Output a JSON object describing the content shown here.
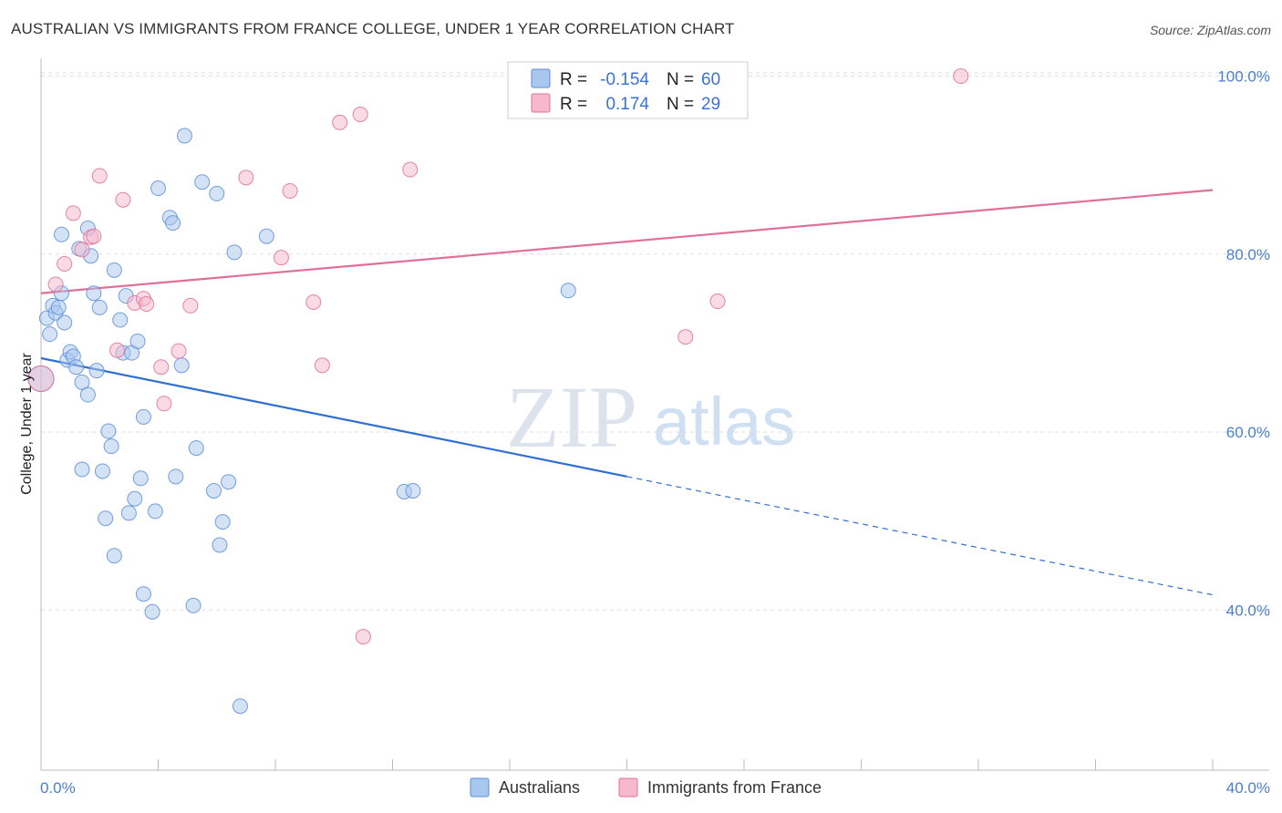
{
  "header": {
    "title": "AUSTRALIAN VS IMMIGRANTS FROM FRANCE COLLEGE, UNDER 1 YEAR CORRELATION CHART",
    "source": "Source: ZipAtlas.com"
  },
  "colors": {
    "blue": "#5b8fd9",
    "blue_fill": "#a9c6ee",
    "pink": "#e0709a",
    "pink_fill": "#f5b8cc",
    "blue_line": "#2f6fd1",
    "pink_line": "#e0709a",
    "grid": "#dddddd"
  },
  "watermark": {
    "zip": "ZIP",
    "atlas": "atlas"
  },
  "chart_data": {
    "type": "scatter",
    "title": "AUSTRALIAN VS IMMIGRANTS FROM FRANCE COLLEGE, UNDER 1 YEAR CORRELATION CHART",
    "xlabel": "",
    "ylabel": "College, Under 1 year",
    "xlim": [
      0,
      40
    ],
    "ylim": [
      22,
      102
    ],
    "x_tick_labels": [
      "0.0%",
      "40.0%"
    ],
    "y_ticks": [
      40,
      60,
      80,
      100
    ],
    "y_tick_labels": [
      "40.0%",
      "60.0%",
      "80.0%",
      "100.0%"
    ],
    "legend": [
      {
        "r_label": "R =",
        "r": "-0.154",
        "n_label": "N =",
        "n": "60"
      },
      {
        "r_label": "R =",
        "r": "0.174",
        "n_label": "N =",
        "n": "29"
      }
    ],
    "series": [
      {
        "name": "Australians",
        "color": "#5b8fd9",
        "trend": {
          "x0": 0,
          "y0": 68.3,
          "x1": 20,
          "y1": 55.0,
          "dash_to_x": 40,
          "dash_to_y": 41.7
        },
        "points": [
          [
            0.0,
            66.0
          ],
          [
            0.2,
            72.8
          ],
          [
            0.3,
            71.0
          ],
          [
            0.4,
            74.2
          ],
          [
            0.5,
            73.4
          ],
          [
            0.6,
            74.0
          ],
          [
            0.7,
            75.6
          ],
          [
            0.7,
            82.2
          ],
          [
            0.8,
            72.3
          ],
          [
            0.9,
            68.1
          ],
          [
            1.0,
            69.0
          ],
          [
            1.1,
            68.5
          ],
          [
            1.2,
            67.3
          ],
          [
            1.3,
            80.6
          ],
          [
            1.4,
            65.6
          ],
          [
            1.6,
            64.2
          ],
          [
            1.6,
            82.9
          ],
          [
            1.7,
            79.8
          ],
          [
            1.8,
            75.6
          ],
          [
            1.9,
            66.9
          ],
          [
            2.0,
            74.0
          ],
          [
            1.4,
            55.8
          ],
          [
            2.1,
            55.6
          ],
          [
            2.2,
            50.3
          ],
          [
            2.3,
            60.1
          ],
          [
            2.4,
            58.4
          ],
          [
            2.5,
            78.2
          ],
          [
            2.5,
            46.1
          ],
          [
            2.7,
            72.6
          ],
          [
            2.8,
            68.9
          ],
          [
            2.9,
            75.3
          ],
          [
            3.0,
            50.9
          ],
          [
            3.1,
            68.9
          ],
          [
            3.2,
            52.5
          ],
          [
            3.3,
            70.2
          ],
          [
            3.4,
            54.8
          ],
          [
            3.5,
            61.7
          ],
          [
            3.5,
            41.8
          ],
          [
            3.8,
            39.8
          ],
          [
            3.9,
            51.1
          ],
          [
            4.0,
            87.4
          ],
          [
            4.4,
            84.1
          ],
          [
            4.5,
            83.5
          ],
          [
            4.6,
            55.0
          ],
          [
            4.8,
            67.5
          ],
          [
            4.9,
            93.3
          ],
          [
            5.2,
            40.5
          ],
          [
            5.3,
            58.2
          ],
          [
            5.5,
            88.1
          ],
          [
            5.9,
            53.4
          ],
          [
            6.0,
            86.8
          ],
          [
            6.1,
            47.3
          ],
          [
            6.2,
            49.9
          ],
          [
            6.4,
            54.4
          ],
          [
            6.6,
            80.2
          ],
          [
            6.8,
            29.2
          ],
          [
            7.7,
            82.0
          ],
          [
            12.4,
            53.3
          ],
          [
            12.7,
            53.4
          ],
          [
            18.0,
            75.9
          ]
        ]
      },
      {
        "name": "Immigrants from France",
        "color": "#e0709a",
        "trend": {
          "x0": 0,
          "y0": 75.6,
          "x1": 40,
          "y1": 87.2
        },
        "points": [
          [
            0.0,
            66.0
          ],
          [
            0.5,
            76.6
          ],
          [
            0.8,
            78.9
          ],
          [
            1.1,
            84.6
          ],
          [
            1.4,
            80.5
          ],
          [
            1.7,
            81.9
          ],
          [
            1.8,
            82.0
          ],
          [
            2.0,
            88.8
          ],
          [
            2.6,
            69.2
          ],
          [
            2.8,
            86.1
          ],
          [
            3.2,
            74.5
          ],
          [
            3.5,
            75.0
          ],
          [
            3.6,
            74.4
          ],
          [
            4.1,
            67.3
          ],
          [
            4.2,
            63.2
          ],
          [
            4.7,
            69.1
          ],
          [
            5.1,
            74.2
          ],
          [
            7.0,
            88.6
          ],
          [
            8.2,
            79.6
          ],
          [
            8.5,
            87.1
          ],
          [
            9.3,
            74.6
          ],
          [
            9.6,
            67.5
          ],
          [
            10.2,
            94.8
          ],
          [
            10.9,
            95.7
          ],
          [
            11.0,
            37.0
          ],
          [
            12.6,
            89.5
          ],
          [
            22.0,
            70.7
          ],
          [
            23.1,
            74.7
          ],
          [
            31.4,
            100.0
          ]
        ]
      }
    ]
  }
}
